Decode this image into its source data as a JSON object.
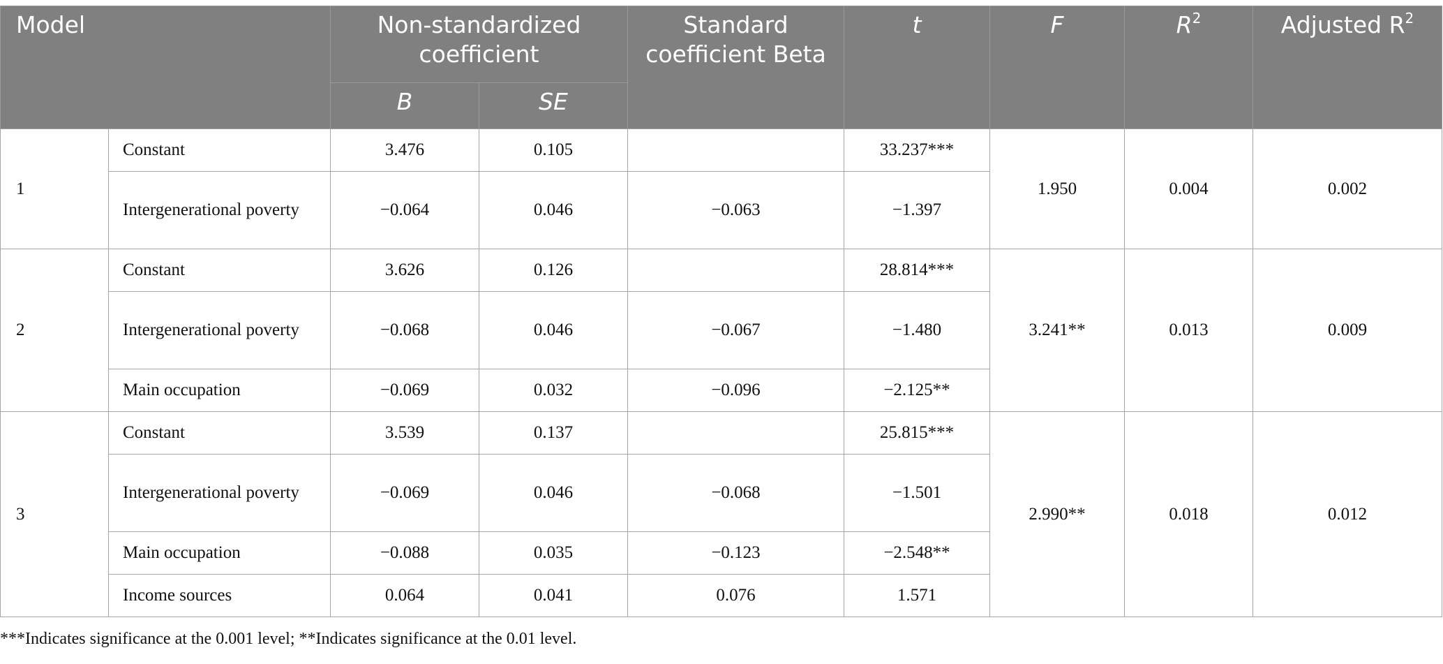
{
  "header": {
    "model": "Model",
    "non_std": "Non-standardized coefficient",
    "b": "B",
    "se": "SE",
    "std_beta": "Standard coefficient Beta",
    "t": "t",
    "f": "F",
    "r2_base": "R",
    "r2_sup": "2",
    "adj_r2_base": "Adjusted R",
    "adj_r2_sup": "2"
  },
  "models": [
    {
      "id": "1",
      "f": "1.950",
      "r2": "0.004",
      "adj_r2": "0.002",
      "rows": [
        {
          "variable": "Constant",
          "b": "3.476",
          "se": "0.105",
          "beta": "",
          "t": "33.237***"
        },
        {
          "variable": "Intergenerational poverty",
          "b": "−0.064",
          "se": "0.046",
          "beta": "−0.063",
          "t": "−1.397"
        }
      ]
    },
    {
      "id": "2",
      "f": "3.241**",
      "r2": "0.013",
      "adj_r2": "0.009",
      "rows": [
        {
          "variable": "Constant",
          "b": "3.626",
          "se": "0.126",
          "beta": "",
          "t": "28.814***"
        },
        {
          "variable": "Intergenerational poverty",
          "b": "−0.068",
          "se": "0.046",
          "beta": "−0.067",
          "t": "−1.480"
        },
        {
          "variable": "Main occupation",
          "b": "−0.069",
          "se": "0.032",
          "beta": "−0.096",
          "t": "−2.125**"
        }
      ]
    },
    {
      "id": "3",
      "f": "2.990**",
      "r2": "0.018",
      "adj_r2": "0.012",
      "rows": [
        {
          "variable": "Constant",
          "b": "3.539",
          "se": "0.137",
          "beta": "",
          "t": "25.815***"
        },
        {
          "variable": "Intergenerational poverty",
          "b": "−0.069",
          "se": "0.046",
          "beta": "−0.068",
          "t": "−1.501"
        },
        {
          "variable": "Main occupation",
          "b": "−0.088",
          "se": "0.035",
          "beta": "−0.123",
          "t": "−2.548**"
        },
        {
          "variable": "Income sources",
          "b": "0.064",
          "se": "0.041",
          "beta": "0.076",
          "t": "1.571"
        }
      ]
    }
  ],
  "footnote": "***Indicates significance at the 0.001 level; **Indicates significance at the 0.01 level."
}
